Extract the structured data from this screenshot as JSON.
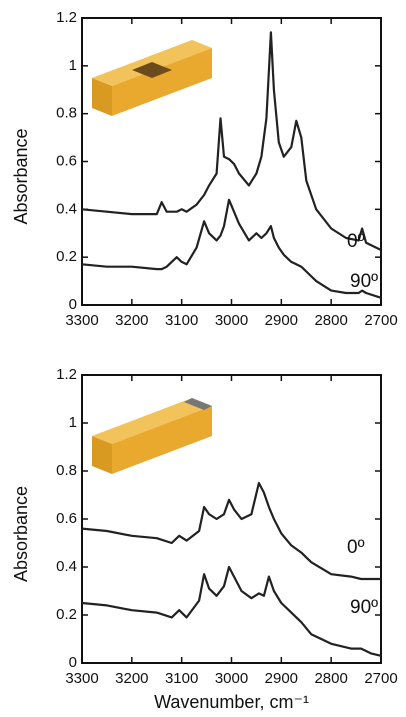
{
  "chart_data": [
    {
      "type": "line",
      "ylabel": "Absorbance",
      "x": [
        3300,
        3250,
        3200,
        3150,
        3140,
        3130,
        3110,
        3100,
        3090,
        3070,
        3055,
        3045,
        3030,
        3022,
        3015,
        3005,
        2995,
        2985,
        2965,
        2950,
        2940,
        2930,
        2921,
        2915,
        2905,
        2895,
        2880,
        2870,
        2860,
        2850,
        2830,
        2800,
        2770,
        2745,
        2738,
        2730,
        2700
      ],
      "series": [
        {
          "name": "0º",
          "color": "#222222",
          "values": [
            0.4,
            0.39,
            0.38,
            0.38,
            0.43,
            0.39,
            0.39,
            0.4,
            0.39,
            0.42,
            0.46,
            0.5,
            0.55,
            0.78,
            0.62,
            0.61,
            0.59,
            0.55,
            0.5,
            0.55,
            0.62,
            0.78,
            1.14,
            0.9,
            0.68,
            0.62,
            0.66,
            0.77,
            0.7,
            0.52,
            0.4,
            0.32,
            0.28,
            0.27,
            0.32,
            0.26,
            0.23
          ]
        },
        {
          "name": "90º",
          "color": "#222222",
          "values": [
            0.17,
            0.16,
            0.16,
            0.15,
            0.15,
            0.16,
            0.2,
            0.18,
            0.17,
            0.24,
            0.35,
            0.3,
            0.27,
            0.29,
            0.33,
            0.44,
            0.39,
            0.34,
            0.27,
            0.3,
            0.28,
            0.3,
            0.33,
            0.28,
            0.24,
            0.21,
            0.18,
            0.17,
            0.16,
            0.14,
            0.1,
            0.06,
            0.05,
            0.05,
            0.06,
            0.05,
            0.03
          ]
        }
      ],
      "xlim": [
        3300,
        2700
      ],
      "xticks": [
        3300,
        3200,
        3100,
        3000,
        2900,
        2800,
        2700
      ],
      "ylim": [
        0,
        1.2
      ],
      "yticks": [
        0,
        0.2,
        0.4,
        0.6,
        0.8,
        1,
        1.2
      ]
    },
    {
      "type": "line",
      "xlabel": "Wavenumber, cm⁻¹",
      "ylabel": "Absorbance",
      "x": [
        3300,
        3250,
        3200,
        3150,
        3120,
        3105,
        3090,
        3065,
        3055,
        3045,
        3030,
        3015,
        3005,
        2995,
        2980,
        2960,
        2945,
        2935,
        2925,
        2915,
        2900,
        2880,
        2860,
        2840,
        2800,
        2760,
        2740,
        2720,
        2700
      ],
      "series": [
        {
          "name": "0º",
          "color": "#222222",
          "values": [
            0.56,
            0.55,
            0.53,
            0.52,
            0.5,
            0.53,
            0.51,
            0.55,
            0.65,
            0.62,
            0.6,
            0.62,
            0.68,
            0.64,
            0.6,
            0.62,
            0.75,
            0.71,
            0.65,
            0.6,
            0.54,
            0.49,
            0.46,
            0.42,
            0.37,
            0.36,
            0.35,
            0.35,
            0.35
          ]
        },
        {
          "name": "90º",
          "color": "#222222",
          "values": [
            0.25,
            0.24,
            0.22,
            0.21,
            0.19,
            0.22,
            0.19,
            0.26,
            0.37,
            0.31,
            0.28,
            0.32,
            0.4,
            0.36,
            0.3,
            0.27,
            0.29,
            0.28,
            0.36,
            0.3,
            0.25,
            0.21,
            0.17,
            0.12,
            0.08,
            0.06,
            0.06,
            0.04,
            0.03
          ]
        }
      ],
      "xlim": [
        3300,
        2700
      ],
      "xticks": [
        3300,
        3200,
        3100,
        3000,
        2900,
        2800,
        2700
      ],
      "ylim": [
        0,
        1.2
      ],
      "yticks": [
        0,
        0.2,
        0.4,
        0.6,
        0.8,
        1,
        1.2
      ]
    }
  ]
}
